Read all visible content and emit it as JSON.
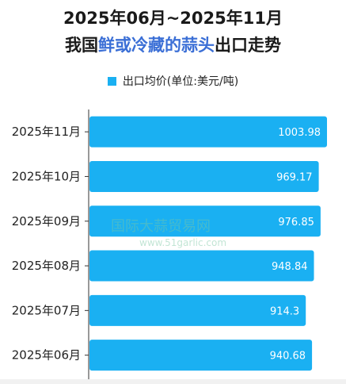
{
  "title": {
    "line1": "2025年06月~2025年11月",
    "line2_prefix": "我国",
    "line2_highlight": "鲜或冷藏的蒜头",
    "line2_suffix": "出口走势"
  },
  "legend": {
    "label": "出口均价(单位:美元/吨)"
  },
  "watermark": {
    "line1": "国际大蒜贸易网",
    "line2": "www.51garlic.com"
  },
  "colors": {
    "bar": "#1ab0f2",
    "highlight": "#3b6fd6"
  },
  "chart_data": {
    "type": "bar",
    "orientation": "horizontal",
    "categories": [
      "2025年11月",
      "2025年10月",
      "2025年09月",
      "2025年08月",
      "2025年07月",
      "2025年06月"
    ],
    "series": [
      {
        "name": "出口均价(单位:美元/吨)",
        "values": [
          1003.98,
          969.17,
          976.85,
          948.84,
          914.3,
          940.68
        ]
      }
    ],
    "value_labels": [
      "1003.98",
      "969.17",
      "976.85",
      "948.84",
      "914.3",
      "940.68"
    ],
    "xlim": [
      0,
      1003.98
    ],
    "grid": false,
    "legend_position": "top"
  }
}
